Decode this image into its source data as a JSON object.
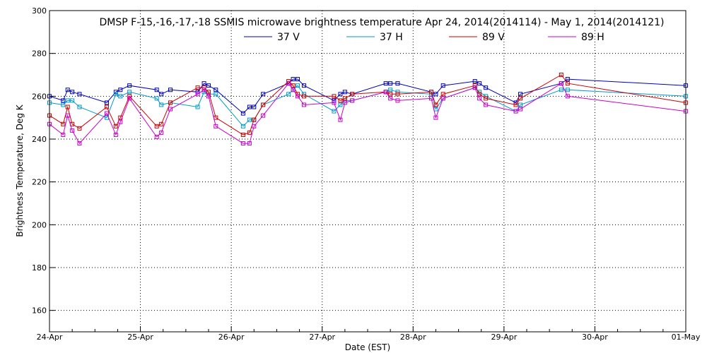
{
  "chart_data": {
    "type": "line",
    "title": "DMSP F-15,-16,-17,-18 SSMIS microwave brightness temperature Apr 24, 2014(2014114) - May  1, 2014(2014121)",
    "xlabel": "Date (EST)",
    "ylabel": "Brightness Temperature, Deg K",
    "xlim": [
      "2014-04-24 00:00",
      "2014-05-01 00:00"
    ],
    "ylim": [
      150,
      300
    ],
    "x_tick_labels": [
      "24-Apr",
      "25-Apr",
      "26-Apr",
      "27-Apr",
      "28-Apr",
      "29-Apr",
      "30-Apr",
      "01-May"
    ],
    "y_ticks": [
      160,
      180,
      200,
      220,
      240,
      260,
      280,
      300
    ],
    "grid": true,
    "legend_position": "top",
    "x_unit": "days since 24-Apr 00:00 EST",
    "series": [
      {
        "name": "37 V",
        "color": "#0000bb",
        "points": [
          [
            0.0,
            260
          ],
          [
            0.15,
            258
          ],
          [
            0.2,
            263
          ],
          [
            0.25,
            262
          ],
          [
            0.33,
            261
          ],
          [
            0.63,
            257
          ],
          [
            0.73,
            262
          ],
          [
            0.78,
            263
          ],
          [
            0.88,
            265
          ],
          [
            1.18,
            263
          ],
          [
            1.23,
            261
          ],
          [
            1.33,
            263
          ],
          [
            1.63,
            262
          ],
          [
            1.7,
            266
          ],
          [
            1.75,
            265
          ],
          [
            1.83,
            263
          ],
          [
            2.13,
            252
          ],
          [
            2.2,
            255
          ],
          [
            2.25,
            255
          ],
          [
            2.35,
            261
          ],
          [
            2.63,
            266
          ],
          [
            2.68,
            268
          ],
          [
            2.73,
            268
          ],
          [
            2.8,
            265
          ],
          [
            3.13,
            258
          ],
          [
            3.2,
            261
          ],
          [
            3.25,
            262
          ],
          [
            3.33,
            261
          ],
          [
            3.7,
            266
          ],
          [
            3.75,
            266
          ],
          [
            3.83,
            266
          ],
          [
            4.2,
            262
          ],
          [
            4.25,
            261
          ],
          [
            4.33,
            265
          ],
          [
            4.68,
            267
          ],
          [
            4.73,
            266
          ],
          [
            4.8,
            264
          ],
          [
            5.13,
            257
          ],
          [
            5.18,
            261
          ],
          [
            5.63,
            266
          ],
          [
            5.7,
            268
          ],
          [
            7.0,
            265
          ]
        ]
      },
      {
        "name": "37 H",
        "color": "#0099cc",
        "points": [
          [
            0.0,
            257
          ],
          [
            0.15,
            256
          ],
          [
            0.2,
            258
          ],
          [
            0.25,
            258
          ],
          [
            0.33,
            255
          ],
          [
            0.63,
            250
          ],
          [
            0.73,
            261
          ],
          [
            0.78,
            260
          ],
          [
            0.88,
            262
          ],
          [
            1.18,
            259
          ],
          [
            1.23,
            256
          ],
          [
            1.33,
            257
          ],
          [
            1.63,
            255
          ],
          [
            1.7,
            262
          ],
          [
            1.75,
            261
          ],
          [
            1.83,
            261
          ],
          [
            2.13,
            246
          ],
          [
            2.2,
            249
          ],
          [
            2.25,
            249
          ],
          [
            2.35,
            256
          ],
          [
            2.63,
            261
          ],
          [
            2.68,
            263
          ],
          [
            2.73,
            265
          ],
          [
            2.8,
            261
          ],
          [
            3.13,
            253
          ],
          [
            3.2,
            256
          ],
          [
            3.25,
            258
          ],
          [
            3.33,
            258
          ],
          [
            3.7,
            262
          ],
          [
            3.75,
            263
          ],
          [
            3.83,
            262
          ],
          [
            4.2,
            261
          ],
          [
            4.25,
            254
          ],
          [
            4.33,
            259
          ],
          [
            4.68,
            264
          ],
          [
            4.73,
            262
          ],
          [
            4.8,
            260
          ],
          [
            5.13,
            253
          ],
          [
            5.18,
            256
          ],
          [
            5.63,
            263
          ],
          [
            5.7,
            263
          ],
          [
            7.0,
            260
          ]
        ]
      },
      {
        "name": "89 V",
        "color": "#cc0000",
        "points": [
          [
            0.0,
            251
          ],
          [
            0.15,
            247
          ],
          [
            0.2,
            255
          ],
          [
            0.25,
            247
          ],
          [
            0.33,
            245
          ],
          [
            0.63,
            255
          ],
          [
            0.73,
            246
          ],
          [
            0.78,
            250
          ],
          [
            0.88,
            260
          ],
          [
            1.18,
            246
          ],
          [
            1.23,
            247
          ],
          [
            1.33,
            257
          ],
          [
            1.63,
            264
          ],
          [
            1.7,
            264
          ],
          [
            1.75,
            262
          ],
          [
            1.83,
            250
          ],
          [
            2.13,
            242
          ],
          [
            2.2,
            243
          ],
          [
            2.25,
            249
          ],
          [
            2.35,
            256
          ],
          [
            2.63,
            267
          ],
          [
            2.68,
            265
          ],
          [
            2.73,
            261
          ],
          [
            2.8,
            260
          ],
          [
            3.13,
            260
          ],
          [
            3.2,
            258
          ],
          [
            3.25,
            259
          ],
          [
            3.33,
            261
          ],
          [
            3.7,
            262
          ],
          [
            3.75,
            261
          ],
          [
            3.83,
            261
          ],
          [
            4.2,
            262
          ],
          [
            4.25,
            256
          ],
          [
            4.33,
            261
          ],
          [
            4.68,
            265
          ],
          [
            4.73,
            261
          ],
          [
            4.8,
            259
          ],
          [
            5.13,
            256
          ],
          [
            5.18,
            259
          ],
          [
            5.63,
            270
          ],
          [
            5.7,
            266
          ],
          [
            7.0,
            257
          ]
        ]
      },
      {
        "name": "89 H",
        "color": "#cc00cc",
        "points": [
          [
            0.0,
            247
          ],
          [
            0.15,
            242
          ],
          [
            0.2,
            251
          ],
          [
            0.25,
            244
          ],
          [
            0.33,
            238
          ],
          [
            0.63,
            252
          ],
          [
            0.73,
            242
          ],
          [
            0.78,
            248
          ],
          [
            0.88,
            259
          ],
          [
            1.18,
            241
          ],
          [
            1.23,
            243
          ],
          [
            1.33,
            254
          ],
          [
            1.63,
            261
          ],
          [
            1.7,
            263
          ],
          [
            1.75,
            260
          ],
          [
            1.83,
            246
          ],
          [
            2.13,
            238
          ],
          [
            2.2,
            238
          ],
          [
            2.25,
            246
          ],
          [
            2.35,
            251
          ],
          [
            2.63,
            266
          ],
          [
            2.68,
            263
          ],
          [
            2.73,
            260
          ],
          [
            2.8,
            256
          ],
          [
            3.13,
            257
          ],
          [
            3.2,
            249
          ],
          [
            3.25,
            257
          ],
          [
            3.33,
            258
          ],
          [
            3.7,
            262
          ],
          [
            3.75,
            259
          ],
          [
            3.83,
            258
          ],
          [
            4.2,
            259
          ],
          [
            4.25,
            250
          ],
          [
            4.33,
            259
          ],
          [
            4.68,
            264
          ],
          [
            4.73,
            259
          ],
          [
            4.8,
            256
          ],
          [
            5.13,
            253
          ],
          [
            5.18,
            254
          ],
          [
            5.63,
            266
          ],
          [
            5.7,
            260
          ],
          [
            7.0,
            253
          ]
        ]
      }
    ]
  }
}
